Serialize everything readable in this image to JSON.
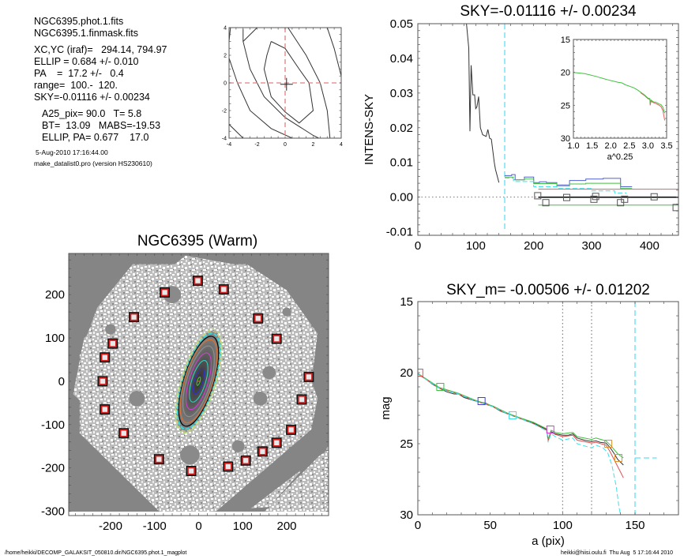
{
  "info_panel": {
    "lines_a": [
      "NGC6395.phot.1.fits",
      "NGC6395.1.finmask.fits"
    ],
    "lines_b": [
      "XC,YC (iraf)=   294.14, 794.97",
      "ELLIP = 0.684 +/- 0.010",
      "PA    =  17.2 +/-   0.4",
      "range=  100.-  120.",
      "SKY=-0.01116 +/- 0.00234"
    ],
    "lines_c": [
      "A25_pix= 90.0   T= 5.8",
      "BT=  13.09   MABS=-19.53",
      "ELLIP, PA= 0.677    17.0"
    ],
    "timestamp": "5-Aug-2010 17:16:44.00",
    "program": "make_datalist0.pro (version HS230610)"
  },
  "footer": {
    "left_path": "/home/heikki/DECOMP_GALAKSIT_050810.dir/NGC6395.phot.1_magplot",
    "right_stamp": "heikki@hiisi.oulu.fi  Thu Aug  5 17:16:44 2010"
  },
  "colors": {
    "red": "#e05050",
    "green": "#40c040",
    "blue": "#4040d0",
    "cyan": "#40e0e8",
    "magenta": "#d040d0",
    "orange": "#e09030",
    "gray": "#888888"
  },
  "chart_data": [
    {
      "id": "center_contour",
      "type": "line",
      "title": "",
      "xlim": [
        -4,
        4
      ],
      "ylim": [
        -4,
        4
      ],
      "xticks": [
        "-4",
        "-2",
        "0",
        "2",
        "4"
      ],
      "yticks": [
        "-4",
        "-2",
        "0",
        "2",
        "4"
      ],
      "contours": [
        [
          [
            -1,
            3
          ],
          [
            0,
            2.5
          ],
          [
            1,
            1
          ],
          [
            1.7,
            0
          ],
          [
            2,
            -2
          ],
          [
            1,
            -2.9
          ],
          [
            0,
            -2.1
          ],
          [
            -1,
            -1
          ],
          [
            -1.5,
            1
          ],
          [
            -1.3,
            2
          ],
          [
            -1,
            3
          ]
        ],
        [
          [
            -4,
            1.8
          ],
          [
            -3.4,
            0
          ],
          [
            -2.5,
            -2
          ],
          [
            -1,
            -3.3
          ],
          [
            0.5,
            -4
          ]
        ],
        [
          [
            -3,
            3.9
          ],
          [
            -3,
            3
          ],
          [
            -2.5,
            1
          ],
          [
            -1.5,
            -1
          ],
          [
            0,
            -2.5
          ],
          [
            2,
            -3.8
          ],
          [
            2.4,
            -4
          ]
        ],
        [
          [
            -2,
            4
          ],
          [
            -3,
            3
          ]
        ],
        [
          [
            0.2,
            4
          ],
          [
            1.5,
            2
          ],
          [
            2.5,
            0
          ],
          [
            3,
            -2
          ],
          [
            3.2,
            -4
          ]
        ],
        [
          [
            3,
            4
          ],
          [
            3.5,
            2.5
          ],
          [
            4,
            0.5
          ]
        ],
        [
          [
            -4,
            -3
          ],
          [
            -3,
            -4
          ]
        ],
        [
          [
            -4,
            3
          ],
          [
            -3.9,
            4
          ]
        ]
      ],
      "crosshair": [
        0,
        0
      ],
      "center_mark": [
        0.1,
        -0.1
      ]
    },
    {
      "id": "sky_profile",
      "type": "line",
      "title": "SKY=-0.01116 +/- 0.00234",
      "ylabel": "INTENS-SKY",
      "xlabel": "",
      "xlim": [
        0,
        450
      ],
      "ylim": [
        -0.011,
        0.05
      ],
      "xticks": [
        0,
        100,
        200,
        300,
        400
      ],
      "yticks": [
        0.05,
        0.04,
        0.03,
        0.02,
        0.01,
        0.0,
        -0.01
      ],
      "ytick_labels": [
        "0.05",
        "0.04",
        "0.03",
        "0.02",
        "0.01",
        "0.00",
        "-0.01"
      ],
      "vline_cyan_dashed": 150,
      "series": [
        {
          "name": "profile",
          "color": "#333333",
          "x": [
            84,
            88,
            90,
            92,
            95,
            98,
            100,
            102,
            105,
            108,
            112,
            118,
            121,
            124,
            127,
            132,
            134,
            140
          ],
          "y": [
            0.05,
            0.043,
            0.019,
            0.038,
            0.0295,
            0.0295,
            0.0255,
            0.026,
            0.029,
            0.02,
            0.018,
            0.0175,
            0.0195,
            0.017,
            0.0167,
            0.01,
            0.008,
            0.0042
          ]
        },
        {
          "name": "blue_step",
          "color": "#5060d0",
          "x": [
            150,
            162,
            162,
            168,
            168,
            184,
            184,
            200,
            200,
            210,
            210,
            222,
            222,
            240,
            240,
            262,
            262,
            290,
            290,
            320,
            320,
            350,
            350,
            370
          ],
          "y": [
            0.0062,
            0.0062,
            0.0065,
            0.0065,
            0.005,
            0.005,
            0.0058,
            0.0058,
            0.0042,
            0.0042,
            0.0044,
            0.0044,
            0.0042,
            0.0042,
            0.0035,
            0.0035,
            0.0048,
            0.0048,
            0.0052,
            0.0052,
            0.0054,
            0.0054,
            0.003,
            0.003
          ]
        },
        {
          "name": "green_step",
          "color": "#40c040",
          "x": [
            150,
            165,
            165,
            184,
            184,
            200,
            200,
            240,
            240,
            262,
            262,
            290,
            290,
            350,
            350,
            370
          ],
          "y": [
            0.0058,
            0.0058,
            0.005,
            0.005,
            0.0052,
            0.0052,
            0.0039,
            0.0039,
            0.0032,
            0.0032,
            0.0038,
            0.0038,
            0.004,
            0.004,
            0.0025,
            0.0025
          ]
        },
        {
          "name": "cyan_step",
          "color": "#40e0e8",
          "dashed": true,
          "x": [
            150,
            165,
            165,
            200,
            200,
            240,
            240,
            300,
            300,
            340,
            340,
            360
          ],
          "y": [
            0.0055,
            0.0055,
            0.0045,
            0.0045,
            0.003,
            0.003,
            0.0025,
            0.0025,
            0.0018,
            0.0018,
            0.0012,
            0.0012
          ]
        },
        {
          "name": "red_level",
          "color": "#e06060",
          "x": [
            208,
            450
          ],
          "y": [
            0.0023,
            0.0023
          ]
        },
        {
          "name": "black_level",
          "color": "#000000",
          "x": [
            208,
            450
          ],
          "y": [
            0.0,
            0.0
          ]
        },
        {
          "name": "green_level",
          "color": "#40c040",
          "x": [
            208,
            450
          ],
          "y": [
            -0.0023,
            -0.0023
          ]
        }
      ],
      "zero_line": 0.0,
      "sky_boxes": {
        "x": [
          207,
          221,
          257,
          304,
          307,
          350,
          357,
          408,
          446
        ],
        "y": [
          0.0004,
          -0.0016,
          -0.0001,
          -0.0006,
          0.0002,
          -0.0016,
          -0.0006,
          0.0001,
          -0.003
        ]
      },
      "inset": {
        "xlabel": "a^0.25",
        "xlim": [
          1.0,
          3.5
        ],
        "ylim": [
          30,
          15
        ],
        "xticks": [
          "1.0",
          "1.5",
          "2.0",
          "2.5",
          "3.0",
          "3.5"
        ],
        "yticks": [
          15,
          20,
          25,
          30
        ],
        "series": [
          {
            "name": "green",
            "color": "#40c040",
            "x": [
              1.0,
              1.3,
              1.6,
              1.9,
              2.2,
              2.3,
              2.4,
              2.6,
              2.7,
              2.8,
              2.9,
              3.0,
              3.05,
              3.06,
              3.08,
              3.15,
              3.2,
              3.3,
              3.35,
              3.4,
              3.45
            ],
            "y": [
              20,
              20.2,
              20.6,
              21.1,
              21.5,
              21.6,
              21.9,
              22.3,
              22.6,
              23.0,
              23.4,
              23.9,
              24.0,
              24.8,
              24.2,
              24.5,
              24.5,
              24.8,
              24.9,
              25.3,
              26.2
            ]
          },
          {
            "name": "red",
            "color": "#e06060",
            "x": [
              2.8,
              2.9,
              3.0,
              3.05,
              3.06,
              3.08,
              3.15,
              3.2,
              3.3,
              3.35,
              3.4,
              3.45
            ],
            "y": [
              23.1,
              23.5,
              24.0,
              24.1,
              25.0,
              24.4,
              24.6,
              24.7,
              25.0,
              25.2,
              25.8,
              27.3
            ]
          }
        ]
      }
    },
    {
      "id": "mag_profile",
      "type": "line",
      "title": "SKY_m= -0.00506 +/- 0.01202",
      "xlabel": "a (pix)",
      "ylabel": "mag",
      "xlim": [
        0,
        180
      ],
      "ylim": [
        30,
        15
      ],
      "xticks": [
        0,
        50,
        100,
        150
      ],
      "yticks": [
        15,
        20,
        25,
        30
      ],
      "vlines_dotted": [
        100,
        120
      ],
      "vline_cyan_dashed": 150,
      "hline_cyan_dashed": {
        "y": 26,
        "x": [
          150,
          165
        ]
      },
      "series": [
        {
          "name": "black",
          "color": "#333333",
          "x": [
            0,
            5,
            10,
            15,
            20,
            25,
            28,
            32,
            40,
            47,
            52,
            57,
            62,
            70,
            80,
            85,
            89,
            90,
            92,
            95,
            100,
            104,
            107,
            110,
            115,
            120,
            123,
            126,
            130,
            133,
            135,
            138,
            140,
            142
          ],
          "y": [
            20.1,
            20.4,
            20.8,
            21.1,
            21.35,
            21.5,
            21.5,
            21.75,
            22.0,
            22.15,
            22.4,
            22.7,
            22.9,
            23.2,
            23.55,
            23.8,
            24.0,
            24.8,
            24.15,
            24.3,
            24.4,
            24.4,
            24.3,
            24.6,
            24.75,
            24.85,
            24.8,
            24.9,
            24.95,
            25.3,
            25.6,
            26.1,
            26.3,
            26.5
          ]
        },
        {
          "name": "green",
          "color": "#40c040",
          "x": [
            0,
            15,
            28,
            40,
            52,
            62,
            70,
            80,
            89,
            90,
            92,
            95,
            100,
            107,
            110,
            120,
            123,
            130,
            133,
            138,
            142
          ],
          "y": [
            20.05,
            21.05,
            21.45,
            21.95,
            22.35,
            22.85,
            23.15,
            23.5,
            23.95,
            24.7,
            24.05,
            24.2,
            24.3,
            24.2,
            24.5,
            24.7,
            24.6,
            24.8,
            25.1,
            25.7,
            26.0
          ]
        },
        {
          "name": "red",
          "color": "#e05050",
          "x": [
            0,
            15,
            28,
            40,
            52,
            62,
            70,
            80,
            89,
            90,
            92,
            95,
            100,
            107,
            110,
            120,
            123,
            130,
            133,
            136,
            140,
            142
          ],
          "y": [
            20.1,
            21.1,
            21.5,
            22.0,
            22.4,
            22.9,
            23.2,
            23.6,
            24.05,
            24.8,
            24.2,
            24.35,
            24.5,
            24.4,
            24.75,
            24.95,
            24.9,
            25.1,
            25.6,
            26.2,
            27.0,
            27.4
          ]
        },
        {
          "name": "cyan_dashed",
          "color": "#40e0e8",
          "dashed": true,
          "x": [
            0,
            15,
            28,
            40,
            52,
            62,
            70,
            80,
            89,
            90,
            92,
            95,
            100,
            107,
            110,
            120,
            123,
            128,
            131,
            134,
            137,
            139,
            140
          ],
          "y": [
            20.1,
            21.1,
            21.5,
            22.0,
            22.4,
            22.9,
            23.2,
            23.6,
            24.1,
            24.9,
            24.3,
            24.5,
            24.75,
            24.6,
            25.0,
            25.3,
            25.1,
            25.3,
            25.6,
            26.5,
            28.0,
            29.5,
            30
          ]
        }
      ],
      "markers": [
        {
          "x": 1,
          "y": 20.0,
          "color": "#e05050"
        },
        {
          "x": 15.5,
          "y": 21.0,
          "color": "#40c040"
        },
        {
          "x": 44,
          "y": 22.0,
          "color": "#4040d0"
        },
        {
          "x": 65.5,
          "y": 23.0,
          "color": "#40e0e8"
        },
        {
          "x": 91.5,
          "y": 24.0,
          "color": "#d040d0"
        },
        {
          "x": 131.5,
          "y": 25.0,
          "color": "#e09030"
        },
        {
          "x": 138.5,
          "y": 26.0,
          "color": "#e09030"
        }
      ]
    },
    {
      "id": "galaxy_image",
      "type": "scatter",
      "title": "NGC6395 (Warm)",
      "xlim": [
        -295,
        295
      ],
      "ylim": [
        -310,
        295
      ],
      "xticks": [
        -200,
        -100,
        0,
        100,
        200
      ],
      "yticks": [
        200,
        100,
        0,
        -100,
        -200,
        -300
      ],
      "ellipse": {
        "pa_deg": 17.2,
        "ellip": 0.684
      },
      "isophote_semimajor": [
        10,
        30,
        50,
        68,
        85,
        100,
        108,
        115,
        120,
        125
      ],
      "isophote_colors": [
        "#30d030",
        "#3030c0",
        "#30d0c0",
        "#d040d0",
        "#909090",
        "#e07030",
        "#000000",
        "#30d8e0",
        "#e8d080",
        "#b8e080"
      ],
      "sky_boxes": {
        "x": [
          -2,
          57,
          -77,
          135,
          -147,
          177,
          -195,
          -213,
          -218,
          -213,
          250,
          234,
          -170,
          210,
          177,
          145,
          -90,
          107,
          67,
          -17
        ],
        "y": [
          232,
          212,
          205,
          145,
          148,
          98,
          87,
          55,
          0,
          -65,
          10,
          -42,
          -120,
          -112,
          -142,
          -162,
          -180,
          -183,
          -197,
          -207
        ]
      }
    }
  ]
}
